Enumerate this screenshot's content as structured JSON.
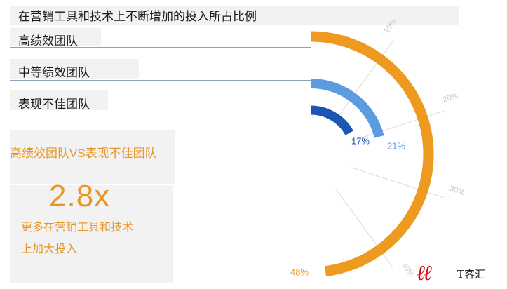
{
  "title": "在营销工具和技术上不断增加的投入所占比例",
  "rows": [
    {
      "label": "高绩效团队"
    },
    {
      "label": "中等绩效团队"
    },
    {
      "label": "表现不佳团队"
    }
  ],
  "callout": {
    "comparison": "高绩效团队VS表现不佳团队",
    "multiplier": "2.8x",
    "description_line1": "更多在营销工具和技术",
    "description_line2": "上加大投入"
  },
  "watermark": {
    "text": "T客汇"
  },
  "colors": {
    "high": "#ee9a20",
    "mid": "#5b9be0",
    "low": "#1d56b0",
    "accent_text": "#e8962a",
    "grid": "#d9d9d9"
  },
  "chart_data": {
    "type": "radial_bar",
    "title": "在营销工具和技术上不断增加的投入所占比例",
    "categories": [
      "高绩效团队",
      "中等绩效团队",
      "表现不佳团队"
    ],
    "values": [
      48,
      21,
      17
    ],
    "value_labels": [
      "48%",
      "21%",
      "17%"
    ],
    "unit": "%",
    "scale_max": 50,
    "axis_ticks": [
      10,
      20,
      30,
      40
    ],
    "axis_tick_labels": [
      "10%",
      "20%",
      "30%",
      "40%"
    ],
    "grid": true
  }
}
